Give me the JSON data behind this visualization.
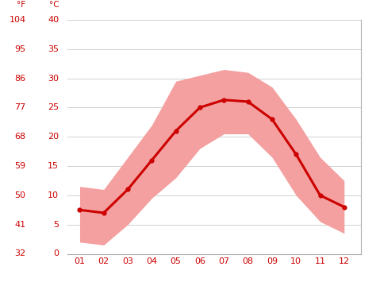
{
  "months": [
    1,
    2,
    3,
    4,
    5,
    6,
    7,
    8,
    9,
    10,
    11,
    12
  ],
  "month_labels": [
    "01",
    "02",
    "03",
    "04",
    "05",
    "06",
    "07",
    "08",
    "09",
    "10",
    "11",
    "12"
  ],
  "mean_temp_c": [
    7.5,
    7.0,
    11.0,
    16.0,
    21.0,
    25.0,
    26.3,
    26.0,
    23.0,
    17.0,
    10.0,
    8.0
  ],
  "max_temp_c": [
    11.5,
    11.0,
    16.5,
    22.0,
    29.5,
    30.5,
    31.5,
    31.0,
    28.5,
    23.0,
    16.5,
    12.5
  ],
  "min_temp_c": [
    2.0,
    1.5,
    5.0,
    9.5,
    13.0,
    18.0,
    20.5,
    20.5,
    16.5,
    10.0,
    5.5,
    3.5
  ],
  "line_color": "#cc0000",
  "band_color": "#f4a0a0",
  "background_color": "#ffffff",
  "grid_color": "#d0d0d0",
  "axis_color": "#cc0000",
  "ylim_c": [
    0,
    40
  ],
  "yticks_c": [
    0,
    5,
    10,
    15,
    20,
    25,
    30,
    35,
    40
  ],
  "yticks_f": [
    32,
    41,
    50,
    59,
    68,
    77,
    86,
    95,
    104
  ],
  "label_f": "°F",
  "label_c": "°C",
  "tick_fontsize": 8.0,
  "header_fontsize": 7.5,
  "line_width": 2.2,
  "marker": "o",
  "marker_size": 3.5
}
